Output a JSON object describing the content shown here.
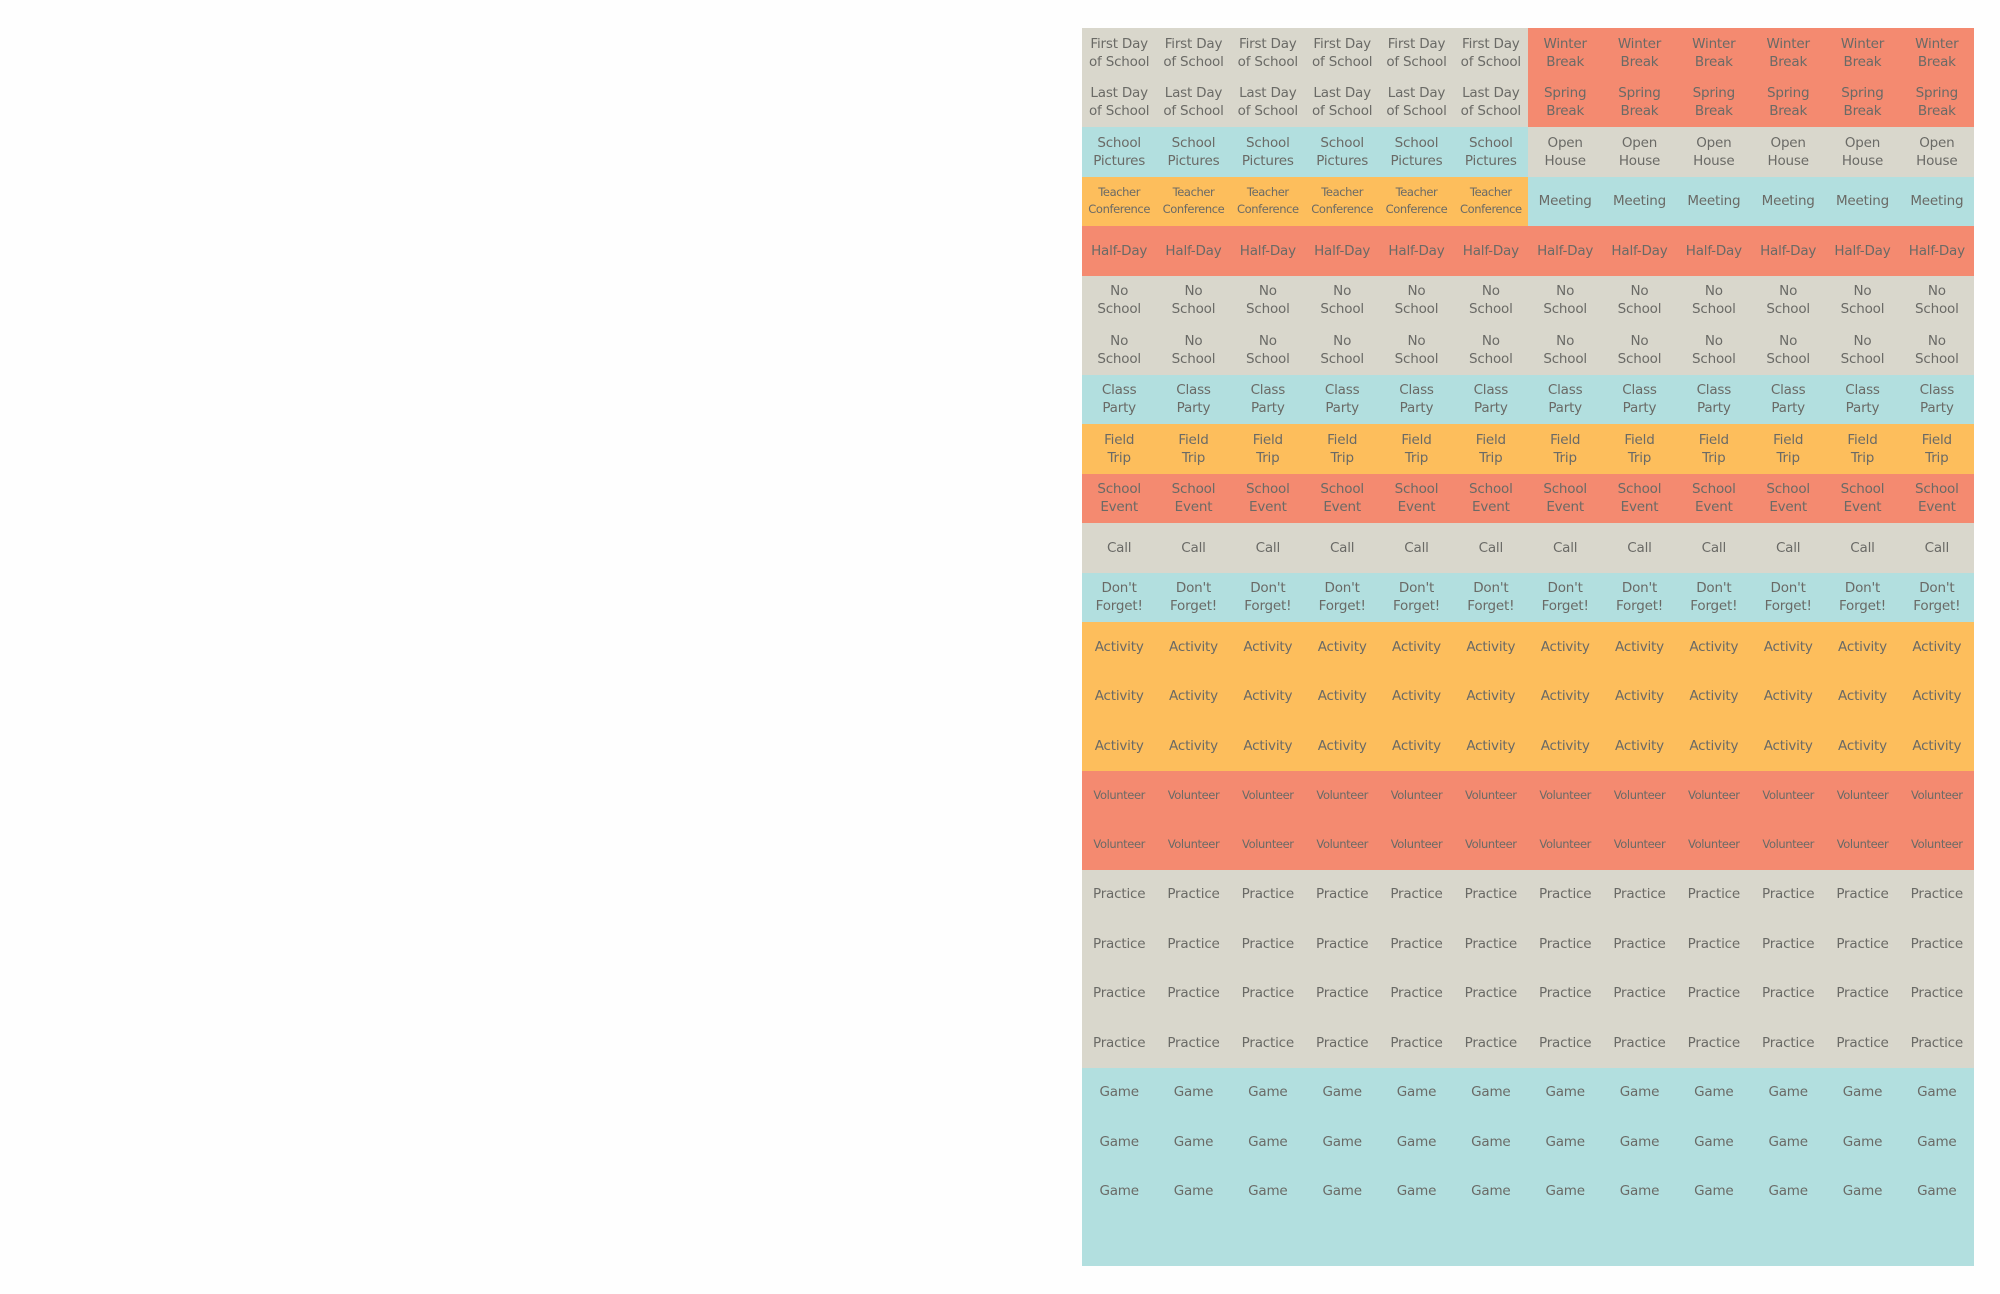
{
  "colors": {
    "gray": "#d9d7cc",
    "salmon": "#f48a70",
    "teal": "#b2dfdf",
    "yellow": "#fdbe5c",
    "text": "#6a6a66"
  },
  "rows": [
    [
      {
        "label": "First Day\nof School",
        "color": "gray",
        "count": 6
      },
      {
        "label": "Winter\nBreak",
        "color": "salmon",
        "count": 6
      }
    ],
    [
      {
        "label": "Last Day\nof School",
        "color": "gray",
        "count": 6
      },
      {
        "label": "Spring\nBreak",
        "color": "salmon",
        "count": 6
      }
    ],
    [
      {
        "label": "School\nPictures",
        "color": "teal",
        "count": 6
      },
      {
        "label": "Open\nHouse",
        "color": "gray",
        "count": 6
      }
    ],
    [
      {
        "label": "Teacher\nConference",
        "color": "yellow",
        "count": 6,
        "small": true
      },
      {
        "label": "Meeting",
        "color": "teal",
        "count": 6
      }
    ],
    [
      {
        "label": "Half-Day",
        "color": "salmon",
        "count": 12
      }
    ],
    [
      {
        "label": "No\nSchool",
        "color": "gray",
        "count": 12
      }
    ],
    [
      {
        "label": "No\nSchool",
        "color": "gray",
        "count": 12
      }
    ],
    [
      {
        "label": "Class\nParty",
        "color": "teal",
        "count": 12
      }
    ],
    [
      {
        "label": "Field\nTrip",
        "color": "yellow",
        "count": 12
      }
    ],
    [
      {
        "label": "School\nEvent",
        "color": "salmon",
        "count": 12
      }
    ],
    [
      {
        "label": "Call",
        "color": "gray",
        "count": 12
      }
    ],
    [
      {
        "label": "Don't\nForget!",
        "color": "teal",
        "count": 12
      }
    ],
    [
      {
        "label": "Activity",
        "color": "yellow",
        "count": 12
      }
    ],
    [
      {
        "label": "Activity",
        "color": "yellow",
        "count": 12
      }
    ],
    [
      {
        "label": "Activity",
        "color": "yellow",
        "count": 12
      }
    ],
    [
      {
        "label": "Volunteer",
        "color": "salmon",
        "count": 12,
        "small": true
      }
    ],
    [
      {
        "label": "Volunteer",
        "color": "salmon",
        "count": 12,
        "small": true
      }
    ],
    [
      {
        "label": "Practice",
        "color": "gray",
        "count": 12
      }
    ],
    [
      {
        "label": "Practice",
        "color": "gray",
        "count": 12
      }
    ],
    [
      {
        "label": "Practice",
        "color": "gray",
        "count": 12
      }
    ],
    [
      {
        "label": "Practice",
        "color": "gray",
        "count": 12
      }
    ],
    [
      {
        "label": "Game",
        "color": "teal",
        "count": 12
      }
    ],
    [
      {
        "label": "Game",
        "color": "teal",
        "count": 12
      }
    ],
    [
      {
        "label": "Game",
        "color": "teal",
        "count": 12
      }
    ],
    [
      {
        "label": "",
        "color": "teal",
        "count": 12
      }
    ]
  ]
}
